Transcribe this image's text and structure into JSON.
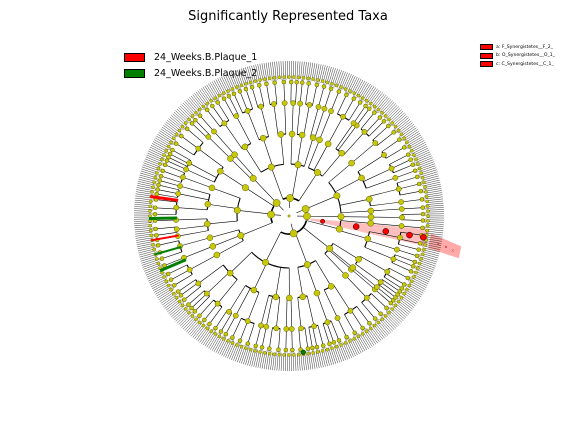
{
  "title": "Significantly Represented Taxa",
  "class_legend": [
    {
      "label": "24_Weeks.B.Plaque_1",
      "color": "#ff0000"
    },
    {
      "label": "24_Weeks.B.Plaque_2",
      "color": "#008000"
    }
  ],
  "clade_legend": [
    {
      "label": "a: F_Synergistetes__F_2_",
      "color": "#ff0000"
    },
    {
      "label": "b: O_Synergistetes__O_1_",
      "color": "#ff0000"
    },
    {
      "label": "c: C_Synergistetes__C_1_",
      "color": "#ff0000"
    }
  ],
  "colors": {
    "node_fill": "#c8c80a",
    "node_edge": "#5a5a00",
    "branch": "#000000",
    "highlight_label": "#ff7070"
  },
  "highlight_labels": [
    "a",
    "b",
    "c"
  ]
}
